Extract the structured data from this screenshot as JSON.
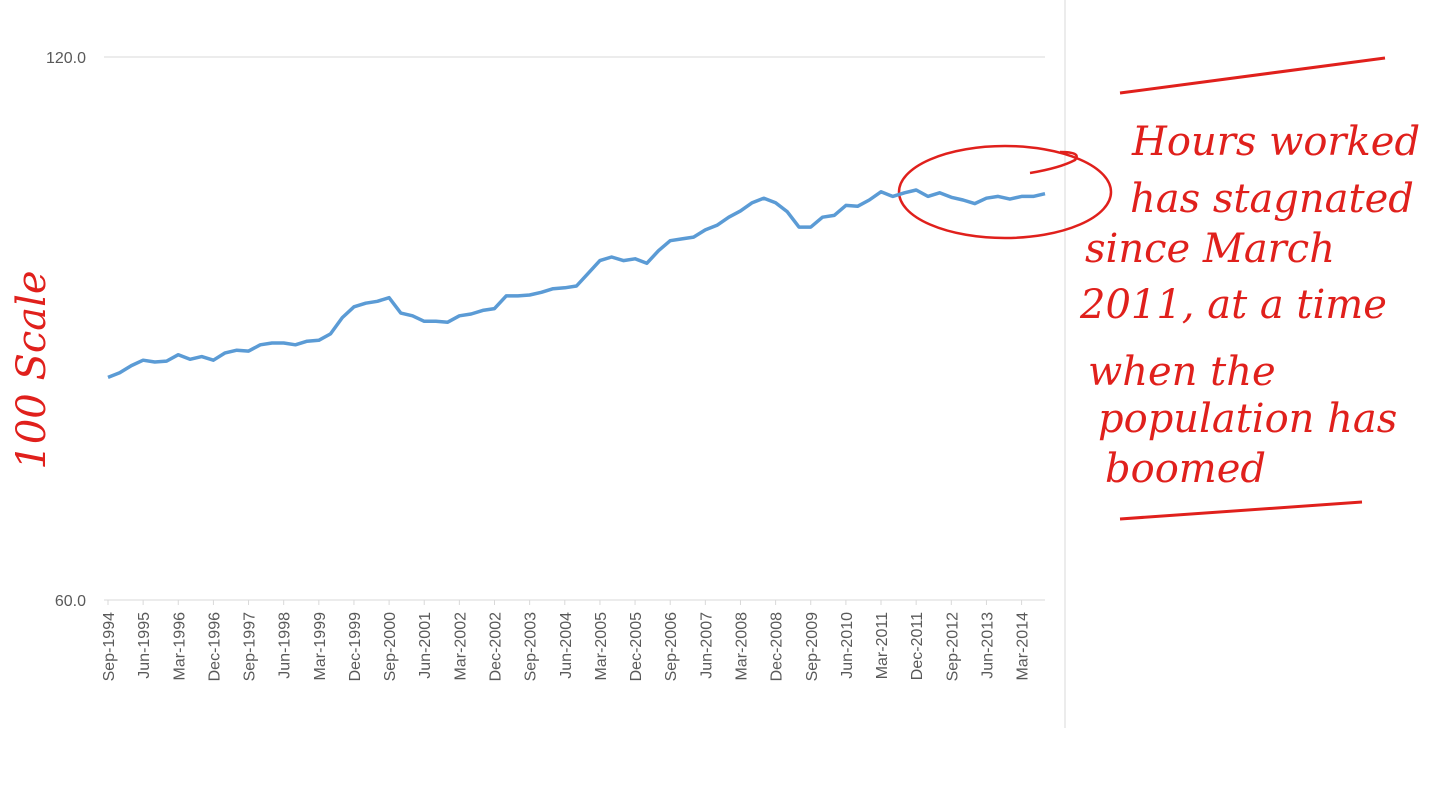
{
  "chart_data": {
    "type": "line",
    "y_label": "100 Scale",
    "annotation_lines": [
      "Hours worked",
      "has stagnated",
      "since March",
      "2011, at a time",
      "when the",
      "population has",
      "boomed"
    ],
    "categories": [
      "Sep-1994",
      null,
      null,
      "Jun-1995",
      null,
      null,
      "Mar-1996",
      null,
      null,
      "Dec-1996",
      null,
      null,
      "Sep-1997",
      null,
      null,
      "Jun-1998",
      null,
      null,
      "Mar-1999",
      null,
      null,
      "Dec-1999",
      null,
      null,
      "Sep-2000",
      null,
      null,
      "Jun-2001",
      null,
      null,
      "Mar-2002",
      null,
      null,
      "Dec-2002",
      null,
      null,
      "Sep-2003",
      null,
      null,
      "Jun-2004",
      null,
      null,
      "Mar-2005",
      null,
      null,
      "Dec-2005",
      null,
      null,
      "Sep-2006",
      null,
      null,
      "Jun-2007",
      null,
      null,
      "Mar-2008",
      null,
      null,
      "Dec-2008",
      null,
      null,
      "Sep-2009",
      null,
      null,
      "Jun-2010",
      null,
      null,
      "Mar-2011",
      null,
      null,
      "Dec-2011",
      null,
      null,
      "Sep-2012",
      null,
      null,
      "Jun-2013",
      null,
      null,
      "Mar-2014",
      null,
      null
    ],
    "values": [
      84.6,
      85.1,
      85.9,
      86.5,
      86.3,
      86.4,
      87.1,
      86.6,
      86.9,
      86.5,
      87.3,
      87.6,
      87.5,
      88.2,
      88.4,
      88.4,
      88.2,
      88.6,
      88.7,
      89.4,
      91.2,
      92.4,
      92.8,
      93.0,
      93.4,
      91.7,
      91.4,
      90.8,
      90.8,
      90.7,
      91.4,
      91.6,
      92.0,
      92.2,
      93.6,
      93.6,
      93.7,
      94.0,
      94.4,
      94.5,
      94.7,
      96.1,
      97.5,
      97.9,
      97.5,
      97.7,
      97.2,
      98.6,
      99.7,
      99.9,
      100.1,
      100.9,
      101.4,
      102.3,
      103.0,
      103.9,
      104.4,
      103.9,
      102.9,
      101.2,
      101.2,
      102.3,
      102.5,
      103.6,
      103.5,
      104.2,
      105.1,
      104.6,
      105.0,
      105.3,
      104.6,
      105.0,
      104.5,
      104.2,
      103.8,
      104.4,
      104.6,
      104.3,
      104.6,
      104.6,
      104.9
    ],
    "color": "#5b9bd5",
    "annotation_color": "#e0201c",
    "ylim": [
      60,
      120
    ],
    "yticks": [
      {
        "value": 60,
        "label": "60.0"
      },
      {
        "value": 120,
        "label": "120.0"
      }
    ],
    "grid": true
  }
}
